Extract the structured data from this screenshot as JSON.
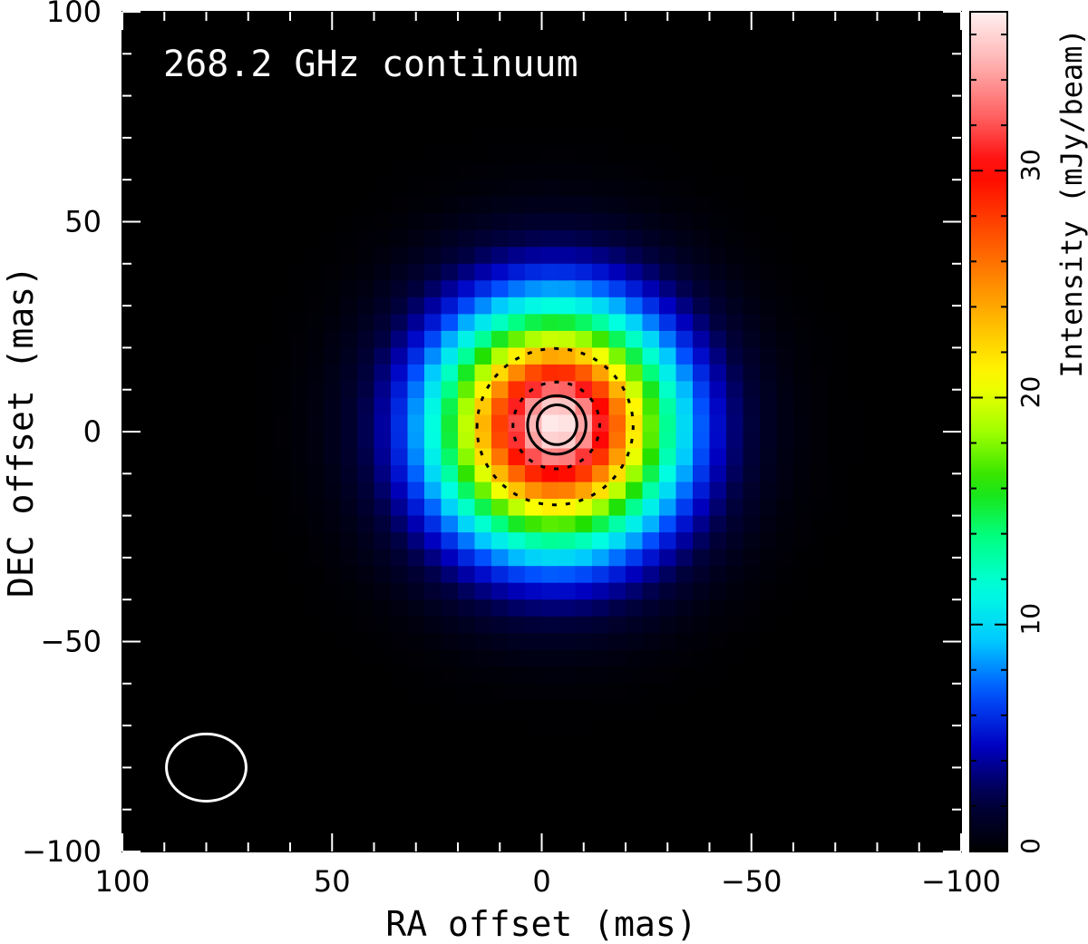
{
  "chart_data": {
    "type": "heatmap",
    "title": "268.2 GHz continuum",
    "xlabel": "RA offset (mas)",
    "ylabel": "DEC offset (mas)",
    "xlim": [
      100,
      -100
    ],
    "ylim": [
      -100,
      100
    ],
    "x_ticks": [
      100,
      50,
      0,
      -50,
      -100
    ],
    "y_ticks": [
      100,
      50,
      0,
      -50,
      -100
    ],
    "x_tick_labels": [
      "100",
      "50",
      "0",
      "−50",
      "−100"
    ],
    "y_tick_labels": [
      "100",
      "50",
      "0",
      "−50",
      "−100"
    ],
    "colorbar": {
      "label": "Intensity (mJy/beam)",
      "range": [
        0,
        37
      ],
      "ticks": [
        0,
        10,
        20,
        30
      ],
      "tick_labels": [
        "0",
        "10",
        "20",
        "30"
      ],
      "colormap_stops": [
        "#000000",
        "#000040",
        "#0000c0",
        "#0050ff",
        "#00c8ff",
        "#00ffe0",
        "#00ff80",
        "#20e000",
        "#a0ff00",
        "#ffff00",
        "#ffc000",
        "#ff8000",
        "#ff4000",
        "#ff0000",
        "#ff6060",
        "#ffb0b0",
        "#fff0f0"
      ]
    },
    "source": {
      "peak_mJy_per_beam": 37,
      "center_ra_mas": -3,
      "center_dec_mas": 1,
      "fwhm_mas": 47,
      "peak_ra_mas": -5,
      "peak_dec_mas": 3
    },
    "contours": {
      "solid_mJy_per_beam": [
        34,
        35.5
      ],
      "dashed_mJy_per_beam": [
        22,
        31
      ]
    },
    "beam": {
      "ra_mas": 80,
      "dec_mas": -80,
      "major_mas": 19,
      "minor_mas": 16,
      "color": "#ffffff"
    }
  }
}
